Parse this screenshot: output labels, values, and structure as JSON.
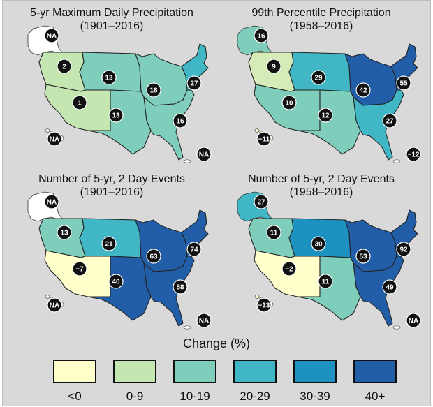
{
  "panels": [
    {
      "title_line1": "5-yr Maximum Daily Precipitation",
      "title_line2": "(1901–2016)",
      "alaska_value": "NA",
      "hawaii_value": "NA",
      "puerto_rico_value": "NA",
      "regions": {
        "northwest": {
          "value": "2",
          "color": "#c4e7b2"
        },
        "southwest": {
          "value": "1",
          "color": "#c4e7b2"
        },
        "great_plains_north": {
          "value": "13",
          "color": "#7fcdbb"
        },
        "great_plains_south": {
          "value": "13",
          "color": "#7fcdbb"
        },
        "midwest": {
          "value": "18",
          "color": "#7fcdbb"
        },
        "northeast": {
          "value": "27",
          "color": "#41b6c4"
        },
        "southeast": {
          "value": "16",
          "color": "#7fcdbb"
        }
      },
      "alaska_color": "#ffffff",
      "hawaii_color": "#ffffff"
    },
    {
      "title_line1": "99th Percentile Precipitation",
      "title_line2": "(1958–2016)",
      "alaska_value": "16",
      "hawaii_value": "−11",
      "puerto_rico_value": "−12",
      "regions": {
        "northwest": {
          "value": "9",
          "color": "#d5ecb8"
        },
        "southwest": {
          "value": "10",
          "color": "#7fcdbb"
        },
        "great_plains_north": {
          "value": "29",
          "color": "#41b6c4"
        },
        "great_plains_south": {
          "value": "12",
          "color": "#7fcdbb"
        },
        "midwest": {
          "value": "42",
          "color": "#225ea8"
        },
        "northeast": {
          "value": "55",
          "color": "#225ea8"
        },
        "southeast": {
          "value": "27",
          "color": "#41b6c4"
        }
      },
      "alaska_color": "#7fcdbb",
      "hawaii_color": "#ffffcc"
    },
    {
      "title_line1": "Number of  5-yr, 2 Day Events",
      "title_line2": "(1901–2016)",
      "alaska_value": "NA",
      "hawaii_value": "NA",
      "puerto_rico_value": "NA",
      "regions": {
        "northwest": {
          "value": "13",
          "color": "#7fcdbb"
        },
        "southwest": {
          "value": "−7",
          "color": "#ffffcc"
        },
        "great_plains_north": {
          "value": "21",
          "color": "#41b6c4"
        },
        "great_plains_south": {
          "value": "40",
          "color": "#225ea8"
        },
        "midwest": {
          "value": "63",
          "color": "#225ea8"
        },
        "northeast": {
          "value": "74",
          "color": "#225ea8"
        },
        "southeast": {
          "value": "58",
          "color": "#225ea8"
        }
      },
      "alaska_color": "#ffffff",
      "hawaii_color": "#ffffff"
    },
    {
      "title_line1": "Number of  5-yr, 2 Day Events",
      "title_line2": "(1958–2016)",
      "alaska_value": "27",
      "hawaii_value": "−33",
      "puerto_rico_value": "NA",
      "regions": {
        "northwest": {
          "value": "11",
          "color": "#7fcdbb"
        },
        "southwest": {
          "value": "−2",
          "color": "#ffffcc"
        },
        "great_plains_north": {
          "value": "30",
          "color": "#1d91c0"
        },
        "great_plains_south": {
          "value": "11",
          "color": "#7fcdbb"
        },
        "midwest": {
          "value": "53",
          "color": "#225ea8"
        },
        "northeast": {
          "value": "92",
          "color": "#225ea8"
        },
        "southeast": {
          "value": "49",
          "color": "#225ea8"
        }
      },
      "alaska_color": "#41b6c4",
      "hawaii_color": "#ffffcc"
    }
  ],
  "legend": {
    "title": "Change (%)",
    "items": [
      {
        "label": "<0",
        "color": "#ffffcc"
      },
      {
        "label": "0-9",
        "color": "#c4e7b2"
      },
      {
        "label": "10-19",
        "color": "#7fcdbb"
      },
      {
        "label": "20-29",
        "color": "#41b6c4"
      },
      {
        "label": "30-39",
        "color": "#1d91c0"
      },
      {
        "label": "40+",
        "color": "#225ea8"
      }
    ]
  }
}
